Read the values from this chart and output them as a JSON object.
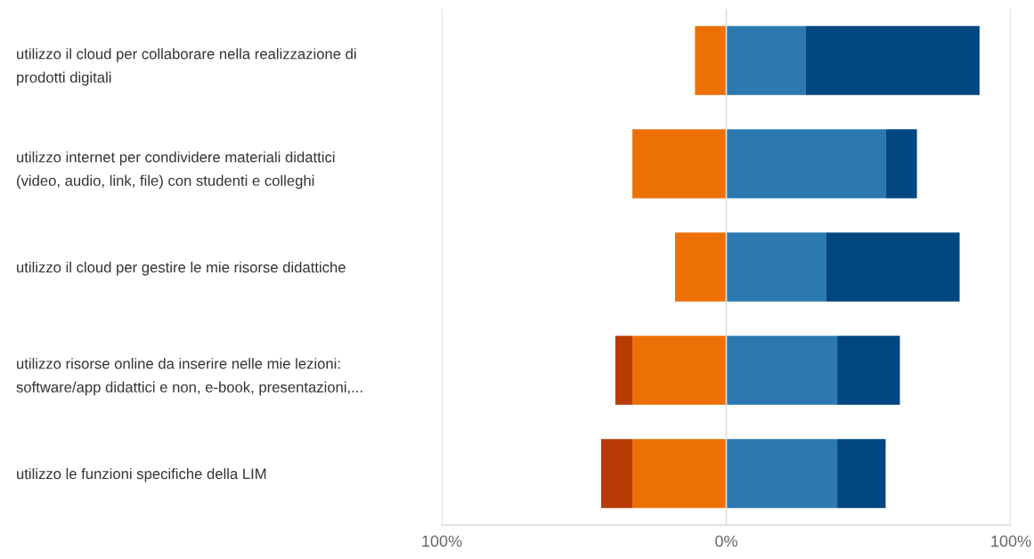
{
  "chart_data": {
    "type": "bar",
    "orientation": "horizontal",
    "stacked": true,
    "categories": [
      "utilizzo il cloud per collaborare nella realizzazione di\nprodotti digitali",
      "utilizzo internet per condividere materiali didattici\n(video, audio, link, file) con studenti e colleghi",
      "utilizzo il cloud per gestire le mie risorse didattiche",
      "utilizzo risorse online da inserire nelle mie lezioni:\nsoftware/app didattici e non, e-book, presentazioni,...",
      "utilizzo le funzioni specifiche della LIM"
    ],
    "series": [
      {
        "color": "#ec7006",
        "values": [
          -11,
          -33,
          -18,
          -33,
          -33
        ]
      },
      {
        "color": "#b83a05",
        "values": [
          null,
          null,
          null,
          -6,
          -11
        ]
      },
      {
        "color": "#2b79b0",
        "values": [
          28,
          56,
          35,
          39,
          39
        ]
      },
      {
        "color": "#004680",
        "values": [
          61,
          11,
          47,
          22,
          17
        ]
      }
    ],
    "xlim": [
      -100,
      100
    ],
    "xticks": [
      {
        "value": -100,
        "label": "100%"
      },
      {
        "value": 0,
        "label": "0%"
      },
      {
        "value": 100,
        "label": "100%"
      }
    ],
    "grid": "x"
  }
}
